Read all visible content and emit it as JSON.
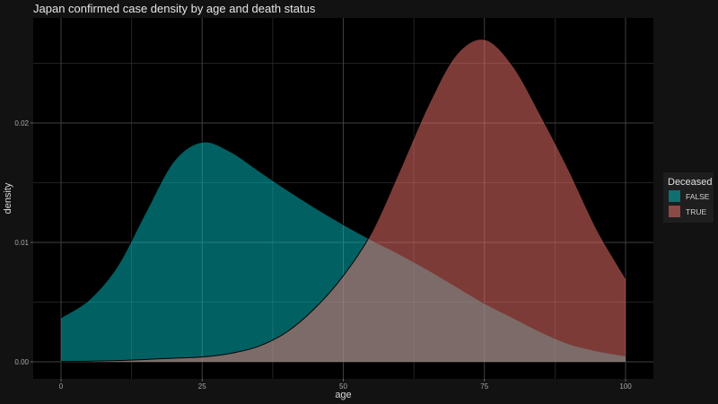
{
  "chart_data": {
    "type": "area",
    "title": "Japan confirmed case density by age and death status",
    "xlabel": "age",
    "ylabel": "density",
    "xlim": [
      0,
      100
    ],
    "ylim": [
      0,
      0.0285
    ],
    "x_ticks": [
      0,
      25,
      50,
      75,
      100
    ],
    "x_tick_labels": [
      "0",
      "25",
      "50",
      "75",
      "100"
    ],
    "y_ticks": [
      0,
      0.01,
      0.02
    ],
    "y_tick_labels": [
      "0.00",
      "0.01",
      "0.02"
    ],
    "grid": true,
    "legend_position": "right",
    "legend_title": "Deceased",
    "x": [
      0,
      5,
      10,
      15,
      20,
      25,
      30,
      35,
      40,
      45,
      50,
      55,
      60,
      65,
      70,
      75,
      80,
      85,
      90,
      95,
      100
    ],
    "series": [
      {
        "name": "FALSE",
        "color": "#00bfc4",
        "values": [
          0.0037,
          0.0052,
          0.008,
          0.0125,
          0.0168,
          0.0184,
          0.0176,
          0.016,
          0.0144,
          0.0129,
          0.0115,
          0.0102,
          0.009,
          0.0077,
          0.0063,
          0.0049,
          0.0037,
          0.0025,
          0.0015,
          0.0009,
          0.0005
        ]
      },
      {
        "name": "TRUE",
        "color": "#f8766d",
        "values": [
          2e-05,
          5e-05,
          0.0001,
          0.0002,
          0.0003,
          0.0004,
          0.0007,
          0.0013,
          0.0025,
          0.0045,
          0.0072,
          0.0108,
          0.016,
          0.0214,
          0.0257,
          0.027,
          0.0248,
          0.0206,
          0.016,
          0.011,
          0.007
        ]
      }
    ]
  }
}
